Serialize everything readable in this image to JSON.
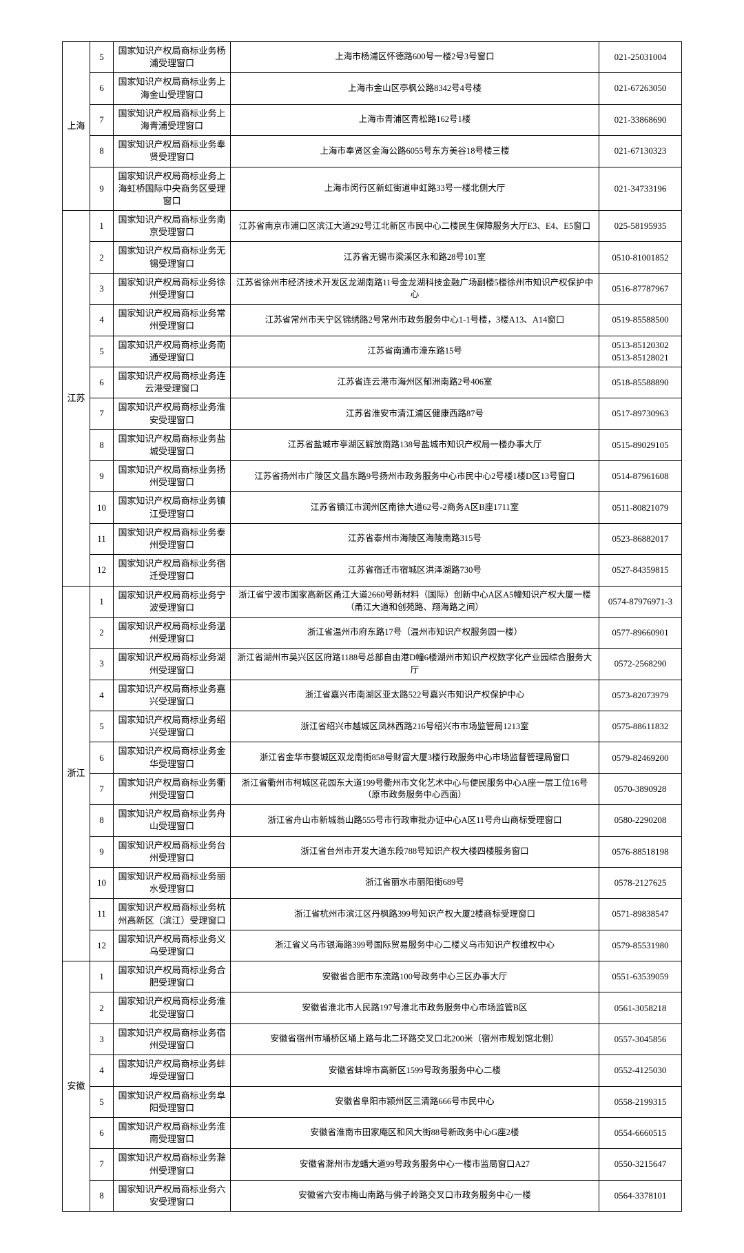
{
  "provinces": [
    {
      "name": "上海",
      "rows": [
        {
          "n": "5",
          "office": "国家知识产权局商标业务杨浦受理窗口",
          "addr": "上海市杨浦区怀德路600号一楼2号3号窗口",
          "phone": "021-25031004"
        },
        {
          "n": "6",
          "office": "国家知识产权局商标业务上海金山受理窗口",
          "addr": "上海市金山区亭枫公路8342号4号楼",
          "phone": "021-67263050"
        },
        {
          "n": "7",
          "office": "国家知识产权局商标业务上海青浦受理窗口",
          "addr": "上海市青浦区青松路162号1楼",
          "phone": "021-33868690"
        },
        {
          "n": "8",
          "office": "国家知识产权局商标业务奉贤受理窗口",
          "addr": "上海市奉贤区金海公路6055号东方美谷18号楼三楼",
          "phone": "021-67130323"
        },
        {
          "n": "9",
          "office": "国家知识产权局商标业务上海虹桥国际中央商务区受理窗口",
          "addr": "上海市闵行区新虹街道申虹路33号一楼北侧大厅",
          "phone": "021-34733196"
        }
      ]
    },
    {
      "name": "江苏",
      "rows": [
        {
          "n": "1",
          "office": "国家知识产权局商标业务南京受理窗口",
          "addr": "江苏省南京市浦口区滨江大道292号江北新区市民中心二楼民生保障服务大厅E3、E4、E5窗口",
          "phone": "025-58195935"
        },
        {
          "n": "2",
          "office": "国家知识产权局商标业务无锡受理窗口",
          "addr": "江苏省无锡市梁溪区永和路28号101室",
          "phone": "0510-81001852"
        },
        {
          "n": "3",
          "office": "国家知识产权局商标业务徐州受理窗口",
          "addr": "江苏省徐州市经济技术开发区龙湖南路11号金龙湖科技金融广场副楼5楼徐州市知识产权保护中心",
          "phone": "0516-87787967"
        },
        {
          "n": "4",
          "office": "国家知识产权局商标业务常州受理窗口",
          "addr": "江苏省常州市天宁区锦绣路2号常州市政务服务中心1-1号楼，3楼A13、A14窗口",
          "phone": "0519-85588500"
        },
        {
          "n": "5",
          "office": "国家知识产权局商标业务南通受理窗口",
          "addr": "江苏省南通市濠东路15号",
          "phone": "0513-85120302\n0513-85128021"
        },
        {
          "n": "6",
          "office": "国家知识产权局商标业务连云港受理窗口",
          "addr": "江苏省连云港市海州区郁洲南路2号406室",
          "phone": "0518-85588890"
        },
        {
          "n": "7",
          "office": "国家知识产权局商标业务淮安受理窗口",
          "addr": "江苏省淮安市清江浦区健康西路87号",
          "phone": "0517-89730963"
        },
        {
          "n": "8",
          "office": "国家知识产权局商标业务盐城受理窗口",
          "addr": "江苏省盐城市亭湖区解放南路138号盐城市知识产权局一楼办事大厅",
          "phone": "0515-89029105"
        },
        {
          "n": "9",
          "office": "国家知识产权局商标业务扬州受理窗口",
          "addr": "江苏省扬州市广陵区文昌东路9号扬州市政务服务中心市民中心2号楼1楼D区13号窗口",
          "phone": "0514-87961608"
        },
        {
          "n": "10",
          "office": "国家知识产权局商标业务镇江受理窗口",
          "addr": "江苏省镇江市润州区南徐大道62号-2商务A区B座1711室",
          "phone": "0511-80821079"
        },
        {
          "n": "11",
          "office": "国家知识产权局商标业务泰州受理窗口",
          "addr": "江苏省泰州市海陵区海陵南路315号",
          "phone": "0523-86882017"
        },
        {
          "n": "12",
          "office": "国家知识产权局商标业务宿迁受理窗口",
          "addr": "江苏省宿迁市宿城区洪泽湖路730号",
          "phone": "0527-84359815"
        }
      ]
    },
    {
      "name": "浙江",
      "rows": [
        {
          "n": "1",
          "office": "国家知识产权局商标业务宁波受理窗口",
          "addr": "浙江省宁波市国家高新区甬江大道2660号新材料（国际）创新中心A区A5幢知识产权大厦一楼（甬江大道和创苑路、翔海路之间）",
          "phone": "0574-87976971-3"
        },
        {
          "n": "2",
          "office": "国家知识产权局商标业务温州受理窗口",
          "addr": "浙江省温州市府东路17号（温州市知识产权服务园一楼）",
          "phone": "0577-89660901"
        },
        {
          "n": "3",
          "office": "国家知识产权局商标业务湖州受理窗口",
          "addr": "浙江省湖州市吴兴区区府路1188号总部自由港D幢6楼湖州市知识产权数字化产业园综合服务大厅",
          "phone": "0572-2568290"
        },
        {
          "n": "4",
          "office": "国家知识产权局商标业务嘉兴受理窗口",
          "addr": "浙江省嘉兴市南湖区亚太路522号嘉兴市知识产权保护中心",
          "phone": "0573-82073979"
        },
        {
          "n": "5",
          "office": "国家知识产权局商标业务绍兴受理窗口",
          "addr": "浙江省绍兴市越城区凤林西路216号绍兴市市场监管局1213室",
          "phone": "0575-88611832"
        },
        {
          "n": "6",
          "office": "国家知识产权局商标业务金华受理窗口",
          "addr": "浙江省金华市婺城区双龙南街858号财富大厦3楼行政服务中心市场监督管理局窗口",
          "phone": "0579-82469200"
        },
        {
          "n": "7",
          "office": "国家知识产权局商标业务衢州受理窗口",
          "addr": "浙江省衢州市柯城区花园东大道199号衢州市文化艺术中心与便民服务中心A座一层工位16号（原市政务服务中心西面）",
          "phone": "0570-3890928"
        },
        {
          "n": "8",
          "office": "国家知识产权局商标业务舟山受理窗口",
          "addr": "浙江省舟山市新城翁山路555号市行政审批办证中心A区11号舟山商标受理窗口",
          "phone": "0580-2290208"
        },
        {
          "n": "9",
          "office": "国家知识产权局商标业务台州受理窗口",
          "addr": "浙江省台州市开发大道东段788号知识产权大楼四楼服务窗口",
          "phone": "0576-88518198"
        },
        {
          "n": "10",
          "office": "国家知识产权局商标业务丽水受理窗口",
          "addr": "浙江省丽水市丽阳街689号",
          "phone": "0578-2127625"
        },
        {
          "n": "11",
          "office": "国家知识产权局商标业务杭州高新区（滨江）受理窗口",
          "addr": "浙江省杭州市滨江区丹枫路399号知识产权大厦2楼商标受理窗口",
          "phone": "0571-89838547"
        },
        {
          "n": "12",
          "office": "国家知识产权局商标业务义乌受理窗口",
          "addr": "浙江省义乌市银海路399号国际贸易服务中心二楼义乌市知识产权维权中心",
          "phone": "0579-85531980"
        }
      ]
    },
    {
      "name": "安徽",
      "rows": [
        {
          "n": "1",
          "office": "国家知识产权局商标业务合肥受理窗口",
          "addr": "安徽省合肥市东流路100号政务中心三区办事大厅",
          "phone": "0551-63539059"
        },
        {
          "n": "2",
          "office": "国家知识产权局商标业务淮北受理窗口",
          "addr": "安徽省淮北市人民路197号淮北市政务服务中心市场监管B区",
          "phone": "0561-3058218"
        },
        {
          "n": "3",
          "office": "国家知识产权局商标业务宿州受理窗口",
          "addr": "安徽省宿州市埇桥区埇上路与北二环路交叉口北200米（宿州市规划馆北侧）",
          "phone": "0557-3045856"
        },
        {
          "n": "4",
          "office": "国家知识产权局商标业务蚌埠受理窗口",
          "addr": "安徽省蚌埠市高新区1599号政务服务中心二楼",
          "phone": "0552-4125030"
        },
        {
          "n": "5",
          "office": "国家知识产权局商标业务阜阳受理窗口",
          "addr": "安徽省阜阳市颍州区三清路666号市民中心",
          "phone": "0558-2199315"
        },
        {
          "n": "6",
          "office": "国家知识产权局商标业务淮南受理窗口",
          "addr": "安徽省淮南市田家庵区和风大街88号新政务中心G座2楼",
          "phone": "0554-6660515"
        },
        {
          "n": "7",
          "office": "国家知识产权局商标业务滁州受理窗口",
          "addr": "安徽省滁州市龙蟠大道99号政务服务中心一楼市监局窗口A27",
          "phone": "0550-3215647"
        },
        {
          "n": "8",
          "office": "国家知识产权局商标业务六安受理窗口",
          "addr": "安徽省六安市梅山南路与佛子岭路交叉口市政务服务中心一楼",
          "phone": "0564-3378101"
        }
      ]
    }
  ]
}
